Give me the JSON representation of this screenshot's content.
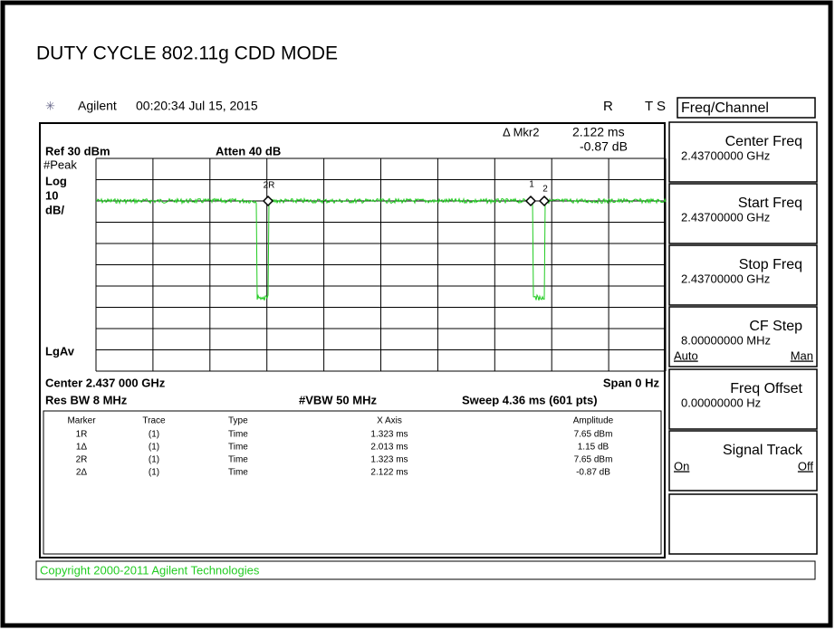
{
  "header": {
    "title": "DUTY CYCLE 802.11g CDD MODE"
  },
  "status_bar": {
    "brand": "Agilent",
    "timestamp": "00:20:34  Jul 15, 2015",
    "flags_r": "R",
    "flags_ts": "T S"
  },
  "display": {
    "ref_level": "Ref 30 dBm",
    "atten": "Atten 40 dB",
    "detector": "#Peak",
    "scale_type": "Log",
    "scale_value": "10",
    "scale_unit": "dB/",
    "averaging": "LgAv",
    "marker_readout": {
      "label": "Δ Mkr2",
      "x": "2.122 ms",
      "y": "-0.87 dB"
    },
    "center": "Center 2.437 000 GHz",
    "span": "Span 0 Hz",
    "res_bw": "Res BW 8 MHz",
    "vbw": "#VBW 50 MHz",
    "sweep": "Sweep 4.36 ms (601 pts)",
    "trace_markers": [
      "2R",
      "1",
      "2"
    ]
  },
  "marker_table": {
    "columns": [
      "Marker",
      "Trace",
      "Type",
      "X Axis",
      "Amplitude"
    ],
    "rows": [
      [
        "1R",
        "(1)",
        "Time",
        "1.323 ms",
        "7.65 dBm"
      ],
      [
        "1Δ",
        "(1)",
        "Time",
        "2.013 ms",
        "1.15 dB"
      ],
      [
        "2R",
        "(1)",
        "Time",
        "1.323 ms",
        "7.65 dBm"
      ],
      [
        "2Δ",
        "(1)",
        "Time",
        "2.122 ms",
        "-0.87 dB"
      ]
    ]
  },
  "copyright": "Copyright 2000-2011 Agilent Technologies",
  "menu": {
    "title": "Freq/Channel",
    "keys": [
      {
        "label": "Center Freq",
        "value": "2.43700000 GHz"
      },
      {
        "label": "Start Freq",
        "value": "2.43700000 GHz"
      },
      {
        "label": "Stop Freq",
        "value": "2.43700000 GHz"
      },
      {
        "label": "CF Step",
        "value": "8.00000000 MHz",
        "option_left": "Auto",
        "option_right": "Man"
      },
      {
        "label": "Freq Offset",
        "value": "0.00000000  Hz"
      },
      {
        "label": "Signal Track",
        "option_left": "On",
        "option_right": "Off"
      }
    ]
  }
}
